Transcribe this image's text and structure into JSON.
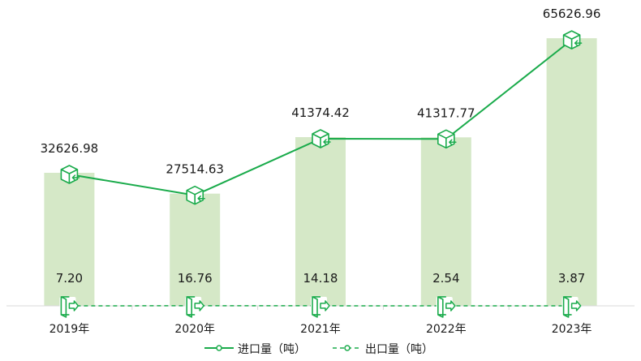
{
  "chart_data": {
    "type": "bar+line",
    "categories": [
      "2019年",
      "2020年",
      "2021年",
      "2022年",
      "2023年"
    ],
    "series": [
      {
        "name": "进口量（吨）",
        "kind": "line+bar",
        "values": [
          32626.98,
          27514.63,
          41374.42,
          41317.77,
          65626.96
        ],
        "labels": [
          "32626.98",
          "27514.63",
          "41374.42",
          "41317.77",
          "65626.96"
        ],
        "bar_color": "#d5e8c7",
        "line_color": "#1aab4b"
      },
      {
        "name": "出口量（吨）",
        "kind": "dashed-line",
        "values": [
          7.2,
          16.76,
          14.18,
          2.54,
          3.87
        ],
        "labels": [
          "7.20",
          "16.76",
          "14.18",
          "2.54",
          "3.87"
        ],
        "line_color": "#1aab4b"
      }
    ],
    "ylim": [
      0,
      75000
    ],
    "grid": false,
    "legend_position": "bottom-center",
    "marker_icons": {
      "import": "box-arrow-in-icon",
      "export": "door-arrow-out-icon"
    }
  }
}
